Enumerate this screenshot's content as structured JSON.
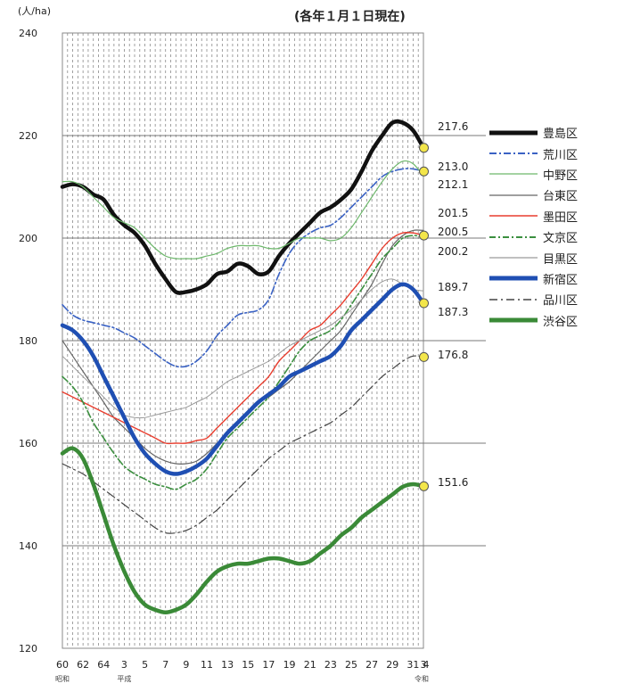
{
  "y_unit": "(人/ha)",
  "note": "(各年１月１日現在)",
  "chart_data": {
    "type": "line",
    "ylim": [
      120,
      240
    ],
    "y_ticks": [
      "120",
      "140",
      "160",
      "180",
      "200",
      "220",
      "240"
    ],
    "x_tick_labels": [
      "60",
      "62",
      "64",
      "3",
      "5",
      "7",
      "9",
      "11",
      "13",
      "15",
      "17",
      "19",
      "21",
      "23",
      "25",
      "27",
      "29",
      "31",
      "3",
      "4"
    ],
    "era_labels": [
      "昭和",
      "平成",
      "令和"
    ],
    "grid": "dashed vertical, solid horizontal",
    "value_labels": [
      "217.6",
      "213.0",
      "212.1",
      "201.5",
      "200.5",
      "200.2",
      "189.7",
      "187.3",
      "176.8",
      "151.6"
    ],
    "series": [
      {
        "name": "豊島区",
        "color": "#111111",
        "values": [
          210,
          210.5,
          210,
          208.5,
          207.5,
          204.5,
          202.5,
          201,
          198.5,
          195,
          192,
          189.5,
          189.5,
          190,
          191,
          193,
          193.5,
          195,
          194.5,
          193,
          193.5,
          196.5,
          199,
          201,
          203,
          205,
          206,
          207.5,
          209.5,
          213,
          217,
          220,
          222.5,
          222.5,
          221,
          217.6
        ]
      },
      {
        "name": "荒川区",
        "color": "#3a62c4",
        "values": [
          187,
          185,
          184,
          183.5,
          183,
          182.5,
          181.5,
          180.5,
          179,
          177.5,
          176,
          175,
          175,
          176,
          178,
          181,
          183,
          185,
          185.5,
          186,
          188,
          193,
          197,
          199.5,
          201,
          202,
          202.5,
          204,
          206,
          208,
          210,
          212,
          213,
          213.5,
          213.5,
          213.0
        ]
      },
      {
        "name": "中野区",
        "color": "#6db86b",
        "values": [
          211,
          211,
          210,
          208,
          206,
          204,
          203,
          202,
          200,
          198,
          196.5,
          196,
          196,
          196,
          196.5,
          197,
          198,
          198.5,
          198.5,
          198.5,
          198,
          198,
          199,
          200,
          200,
          200,
          199.5,
          200,
          202,
          205,
          208,
          211,
          213.5,
          215,
          214.5,
          212.1
        ]
      },
      {
        "name": "台東区",
        "color": "#666666",
        "values": [
          180,
          177,
          174,
          171,
          168,
          165,
          163,
          161,
          159,
          157.5,
          156.5,
          156,
          156,
          156.5,
          158,
          160,
          162,
          164,
          166,
          168,
          169,
          170.5,
          172,
          174,
          176,
          178,
          180,
          182,
          185,
          188,
          191,
          195,
          198.5,
          200.5,
          201.5,
          201.5
        ]
      },
      {
        "name": "墨田区",
        "color": "#e83d2e",
        "values": [
          170,
          169,
          168,
          167,
          166,
          165,
          164,
          163,
          162,
          161,
          160,
          160,
          160,
          160.5,
          161,
          163,
          165,
          167,
          169,
          171,
          173,
          176,
          178,
          180,
          182,
          183,
          185,
          187,
          189.5,
          192,
          195,
          198,
          200,
          201,
          201,
          200.5
        ]
      },
      {
        "name": "文京区",
        "color": "#3b8f3f",
        "values": [
          173,
          171,
          168,
          164,
          161,
          158,
          155.5,
          154,
          153,
          152,
          151.5,
          151,
          152,
          153,
          155,
          158,
          161,
          163,
          165,
          167,
          169,
          172,
          175,
          178,
          180,
          181,
          182,
          184,
          187,
          190,
          193,
          196,
          198,
          200,
          200.5,
          200.2
        ]
      },
      {
        "name": "目黒区",
        "color": "#9a9a9a",
        "values": [
          177,
          175,
          173,
          171,
          169,
          167,
          165.5,
          165,
          165,
          165.5,
          166,
          166.5,
          167,
          168,
          169,
          170.5,
          172,
          173,
          174,
          175,
          176,
          177.5,
          179,
          180,
          181,
          182,
          183,
          184.5,
          186,
          188,
          190,
          191.5,
          192,
          191,
          190,
          189.7
        ]
      },
      {
        "name": "新宿区",
        "color": "#1f4fb3",
        "values": [
          183,
          182,
          180,
          177,
          173,
          169,
          165,
          161,
          158,
          156,
          154.5,
          154,
          154.5,
          155.5,
          157,
          159.5,
          162,
          164,
          166,
          168,
          169.5,
          171,
          173,
          174,
          175,
          176,
          177,
          179,
          182,
          184,
          186,
          188,
          190,
          191,
          190,
          187.3
        ]
      },
      {
        "name": "品川区",
        "color": "#444444",
        "values": [
          156,
          155,
          154,
          152.5,
          151,
          149.5,
          148,
          146.5,
          145,
          143.5,
          142.5,
          142.5,
          143,
          144,
          145.5,
          147,
          149,
          151,
          153,
          155,
          157,
          158.5,
          160,
          161,
          162,
          163,
          164,
          165.5,
          167,
          169,
          171,
          173,
          174.5,
          176,
          177,
          176.8
        ]
      },
      {
        "name": "渋谷区",
        "color": "#3a8a37",
        "values": [
          158,
          159,
          157,
          152,
          146,
          140,
          135,
          131,
          128.5,
          127.5,
          127,
          127.5,
          128.5,
          130.5,
          133,
          135,
          136,
          136.5,
          136.5,
          137,
          137.5,
          137.5,
          137,
          136.5,
          137,
          138.5,
          140,
          142,
          143.5,
          145.5,
          147,
          148.5,
          150,
          151.5,
          152,
          151.6
        ]
      }
    ]
  }
}
